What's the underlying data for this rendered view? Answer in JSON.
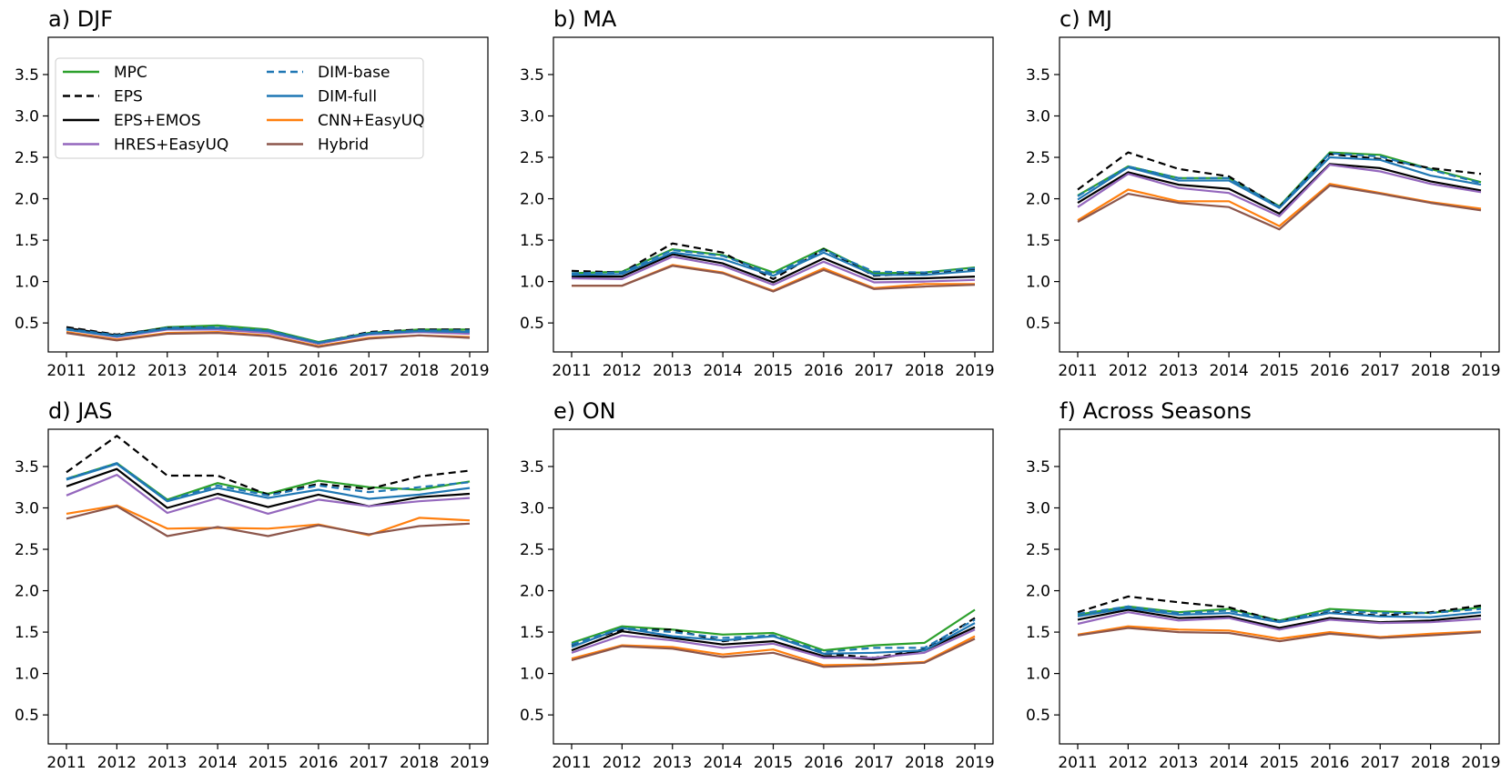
{
  "legend": {
    "entries": [
      {
        "name": "MPC",
        "color": "#2ca02c",
        "dashed": false
      },
      {
        "name": "EPS",
        "color": "#000000",
        "dashed": true
      },
      {
        "name": "EPS+EMOS",
        "color": "#000000",
        "dashed": false
      },
      {
        "name": "HRES+EasyUQ",
        "color": "#9467bd",
        "dashed": false
      },
      {
        "name": "DIM-base",
        "color": "#1f77b4",
        "dashed": true
      },
      {
        "name": "DIM-full",
        "color": "#1f77b4",
        "dashed": false
      },
      {
        "name": "CNN+EasyUQ",
        "color": "#ff7f0e",
        "dashed": false
      },
      {
        "name": "Hybrid",
        "color": "#8c564b",
        "dashed": false
      }
    ]
  },
  "chart_data": [
    {
      "type": "line",
      "title": "a) DJF",
      "x": [
        "2011",
        "2012",
        "2013",
        "2014",
        "2015",
        "2016",
        "2017",
        "2018",
        "2019"
      ],
      "ylim": [
        0.15,
        3.95
      ],
      "yticks": [
        "0.5",
        "1.0",
        "1.5",
        "2.0",
        "2.5",
        "3.0",
        "3.5"
      ],
      "series": [
        {
          "name": "MPC",
          "values": [
            0.43,
            0.35,
            0.45,
            0.47,
            0.42,
            0.27,
            0.38,
            0.42,
            0.42
          ]
        },
        {
          "name": "EPS",
          "values": [
            0.45,
            0.36,
            0.44,
            0.44,
            0.41,
            0.26,
            0.39,
            0.42,
            0.42
          ]
        },
        {
          "name": "EPS+EMOS",
          "values": [
            0.44,
            0.35,
            0.44,
            0.44,
            0.4,
            0.25,
            0.37,
            0.4,
            0.39
          ]
        },
        {
          "name": "HRES+EasyUQ",
          "values": [
            0.42,
            0.33,
            0.42,
            0.42,
            0.38,
            0.25,
            0.36,
            0.39,
            0.37
          ]
        },
        {
          "name": "DIM-base",
          "values": [
            0.43,
            0.35,
            0.44,
            0.45,
            0.41,
            0.26,
            0.38,
            0.41,
            0.41
          ]
        },
        {
          "name": "DIM-full",
          "values": [
            0.42,
            0.34,
            0.43,
            0.44,
            0.4,
            0.26,
            0.37,
            0.4,
            0.39
          ]
        },
        {
          "name": "CNN+EasyUQ",
          "values": [
            0.39,
            0.3,
            0.38,
            0.39,
            0.35,
            0.22,
            0.32,
            0.35,
            0.33
          ]
        },
        {
          "name": "Hybrid",
          "values": [
            0.38,
            0.29,
            0.37,
            0.38,
            0.34,
            0.21,
            0.31,
            0.35,
            0.32
          ]
        }
      ]
    },
    {
      "type": "line",
      "title": "b) MA",
      "x": [
        "2011",
        "2012",
        "2013",
        "2014",
        "2015",
        "2016",
        "2017",
        "2018",
        "2019"
      ],
      "ylim": [
        0.15,
        3.95
      ],
      "yticks": [
        "0.5",
        "1.0",
        "1.5",
        "2.0",
        "2.5",
        "3.0",
        "3.5"
      ],
      "series": [
        {
          "name": "MPC",
          "values": [
            1.1,
            1.12,
            1.39,
            1.32,
            1.11,
            1.4,
            1.1,
            1.11,
            1.17
          ]
        },
        {
          "name": "EPS",
          "values": [
            1.13,
            1.11,
            1.46,
            1.35,
            1.03,
            1.39,
            1.07,
            1.1,
            1.15
          ]
        },
        {
          "name": "EPS+EMOS",
          "values": [
            1.06,
            1.06,
            1.33,
            1.22,
            0.99,
            1.28,
            1.03,
            1.04,
            1.06
          ]
        },
        {
          "name": "HRES+EasyUQ",
          "values": [
            1.04,
            1.03,
            1.3,
            1.19,
            0.96,
            1.24,
            0.99,
            1.0,
            1.02
          ]
        },
        {
          "name": "DIM-base",
          "values": [
            1.1,
            1.11,
            1.38,
            1.31,
            1.09,
            1.38,
            1.12,
            1.11,
            1.16
          ]
        },
        {
          "name": "DIM-full",
          "values": [
            1.08,
            1.09,
            1.35,
            1.27,
            1.07,
            1.35,
            1.08,
            1.08,
            1.13
          ]
        },
        {
          "name": "CNN+EasyUQ",
          "values": [
            0.95,
            0.95,
            1.2,
            1.11,
            0.89,
            1.16,
            0.92,
            0.97,
            0.97
          ]
        },
        {
          "name": "Hybrid",
          "values": [
            0.95,
            0.95,
            1.19,
            1.1,
            0.88,
            1.14,
            0.91,
            0.94,
            0.96
          ]
        }
      ]
    },
    {
      "type": "line",
      "title": "c) MJ",
      "x": [
        "2011",
        "2012",
        "2013",
        "2014",
        "2015",
        "2016",
        "2017",
        "2018",
        "2019"
      ],
      "ylim": [
        0.15,
        3.95
      ],
      "yticks": [
        "0.5",
        "1.0",
        "1.5",
        "2.0",
        "2.5",
        "3.0",
        "3.5"
      ],
      "series": [
        {
          "name": "MPC",
          "values": [
            2.04,
            2.39,
            2.25,
            2.25,
            1.91,
            2.56,
            2.53,
            2.36,
            2.2
          ]
        },
        {
          "name": "EPS",
          "values": [
            2.11,
            2.56,
            2.36,
            2.27,
            1.9,
            2.54,
            2.48,
            2.37,
            2.3
          ]
        },
        {
          "name": "EPS+EMOS",
          "values": [
            1.95,
            2.32,
            2.17,
            2.12,
            1.82,
            2.42,
            2.37,
            2.21,
            2.1
          ]
        },
        {
          "name": "HRES+EasyUQ",
          "values": [
            1.9,
            2.3,
            2.13,
            2.07,
            1.79,
            2.41,
            2.33,
            2.18,
            2.08
          ]
        },
        {
          "name": "DIM-base",
          "values": [
            2.03,
            2.39,
            2.25,
            2.25,
            1.9,
            2.55,
            2.51,
            2.35,
            2.19
          ]
        },
        {
          "name": "DIM-full",
          "values": [
            1.99,
            2.38,
            2.22,
            2.22,
            1.89,
            2.5,
            2.47,
            2.28,
            2.17
          ]
        },
        {
          "name": "CNN+EasyUQ",
          "values": [
            1.74,
            2.11,
            1.97,
            1.97,
            1.67,
            2.18,
            2.07,
            1.96,
            1.88
          ]
        },
        {
          "name": "Hybrid",
          "values": [
            1.72,
            2.06,
            1.95,
            1.9,
            1.63,
            2.16,
            2.06,
            1.95,
            1.86
          ]
        }
      ]
    },
    {
      "type": "line",
      "title": "d) JAS",
      "x": [
        "2011",
        "2012",
        "2013",
        "2014",
        "2015",
        "2016",
        "2017",
        "2018",
        "2019"
      ],
      "ylim": [
        0.15,
        3.95
      ],
      "yticks": [
        "0.5",
        "1.0",
        "1.5",
        "2.0",
        "2.5",
        "3.0",
        "3.5"
      ],
      "series": [
        {
          "name": "MPC",
          "values": [
            3.35,
            3.54,
            3.1,
            3.3,
            3.17,
            3.33,
            3.25,
            3.22,
            3.32
          ]
        },
        {
          "name": "EPS",
          "values": [
            3.43,
            3.87,
            3.39,
            3.39,
            3.16,
            3.29,
            3.23,
            3.38,
            3.45
          ]
        },
        {
          "name": "EPS+EMOS",
          "values": [
            3.26,
            3.47,
            3.0,
            3.17,
            3.01,
            3.16,
            3.02,
            3.13,
            3.17
          ]
        },
        {
          "name": "HRES+EasyUQ",
          "values": [
            3.15,
            3.4,
            2.94,
            3.12,
            2.93,
            3.1,
            3.02,
            3.08,
            3.12
          ]
        },
        {
          "name": "DIM-base",
          "values": [
            3.35,
            3.54,
            3.09,
            3.27,
            3.15,
            3.27,
            3.19,
            3.25,
            3.31
          ]
        },
        {
          "name": "DIM-full",
          "values": [
            3.34,
            3.53,
            3.08,
            3.24,
            3.12,
            3.22,
            3.11,
            3.16,
            3.24
          ]
        },
        {
          "name": "CNN+EasyUQ",
          "values": [
            2.93,
            3.03,
            2.75,
            2.76,
            2.75,
            2.8,
            2.67,
            2.88,
            2.85
          ]
        },
        {
          "name": "Hybrid",
          "values": [
            2.87,
            3.02,
            2.66,
            2.77,
            2.66,
            2.79,
            2.68,
            2.78,
            2.81
          ]
        }
      ]
    },
    {
      "type": "line",
      "title": "e) ON",
      "x": [
        "2011",
        "2012",
        "2013",
        "2014",
        "2015",
        "2016",
        "2017",
        "2018",
        "2019"
      ],
      "ylim": [
        0.15,
        3.95
      ],
      "yticks": [
        "0.5",
        "1.0",
        "1.5",
        "2.0",
        "2.5",
        "3.0",
        "3.5"
      ],
      "series": [
        {
          "name": "MPC",
          "values": [
            1.37,
            1.57,
            1.53,
            1.47,
            1.49,
            1.28,
            1.34,
            1.37,
            1.77
          ]
        },
        {
          "name": "EPS",
          "values": [
            1.34,
            1.53,
            1.53,
            1.39,
            1.46,
            1.24,
            1.19,
            1.29,
            1.67
          ]
        },
        {
          "name": "EPS+EMOS",
          "values": [
            1.28,
            1.51,
            1.43,
            1.35,
            1.39,
            1.21,
            1.17,
            1.28,
            1.56
          ]
        },
        {
          "name": "HRES+EasyUQ",
          "values": [
            1.25,
            1.46,
            1.4,
            1.31,
            1.36,
            1.19,
            1.19,
            1.25,
            1.53
          ]
        },
        {
          "name": "DIM-base",
          "values": [
            1.35,
            1.55,
            1.5,
            1.43,
            1.46,
            1.26,
            1.31,
            1.31,
            1.65
          ]
        },
        {
          "name": "DIM-full",
          "values": [
            1.32,
            1.55,
            1.45,
            1.4,
            1.45,
            1.24,
            1.25,
            1.28,
            1.61
          ]
        },
        {
          "name": "CNN+EasyUQ",
          "values": [
            1.18,
            1.34,
            1.32,
            1.23,
            1.29,
            1.1,
            1.11,
            1.14,
            1.45
          ]
        },
        {
          "name": "Hybrid",
          "values": [
            1.16,
            1.33,
            1.3,
            1.2,
            1.25,
            1.08,
            1.1,
            1.13,
            1.42
          ]
        }
      ]
    },
    {
      "type": "line",
      "title": "f) Across Seasons",
      "x": [
        "2011",
        "2012",
        "2013",
        "2014",
        "2015",
        "2016",
        "2017",
        "2018",
        "2019"
      ],
      "ylim": [
        0.15,
        3.95
      ],
      "yticks": [
        "0.5",
        "1.0",
        "1.5",
        "2.0",
        "2.5",
        "3.0",
        "3.5"
      ],
      "series": [
        {
          "name": "MPC",
          "values": [
            1.71,
            1.81,
            1.74,
            1.78,
            1.64,
            1.78,
            1.75,
            1.73,
            1.8
          ]
        },
        {
          "name": "EPS",
          "values": [
            1.74,
            1.93,
            1.86,
            1.8,
            1.63,
            1.74,
            1.7,
            1.74,
            1.82
          ]
        },
        {
          "name": "EPS+EMOS",
          "values": [
            1.65,
            1.77,
            1.67,
            1.69,
            1.55,
            1.67,
            1.62,
            1.64,
            1.7
          ]
        },
        {
          "name": "HRES+EasyUQ",
          "values": [
            1.6,
            1.74,
            1.64,
            1.67,
            1.53,
            1.65,
            1.61,
            1.62,
            1.66
          ]
        },
        {
          "name": "DIM-base",
          "values": [
            1.72,
            1.81,
            1.73,
            1.76,
            1.63,
            1.76,
            1.73,
            1.73,
            1.78
          ]
        },
        {
          "name": "DIM-full",
          "values": [
            1.69,
            1.79,
            1.71,
            1.73,
            1.62,
            1.73,
            1.69,
            1.68,
            1.74
          ]
        },
        {
          "name": "CNN+EasyUQ",
          "values": [
            1.47,
            1.57,
            1.53,
            1.52,
            1.42,
            1.5,
            1.44,
            1.48,
            1.51
          ]
        },
        {
          "name": "Hybrid",
          "values": [
            1.46,
            1.55,
            1.5,
            1.49,
            1.39,
            1.48,
            1.43,
            1.46,
            1.5
          ]
        }
      ]
    }
  ]
}
